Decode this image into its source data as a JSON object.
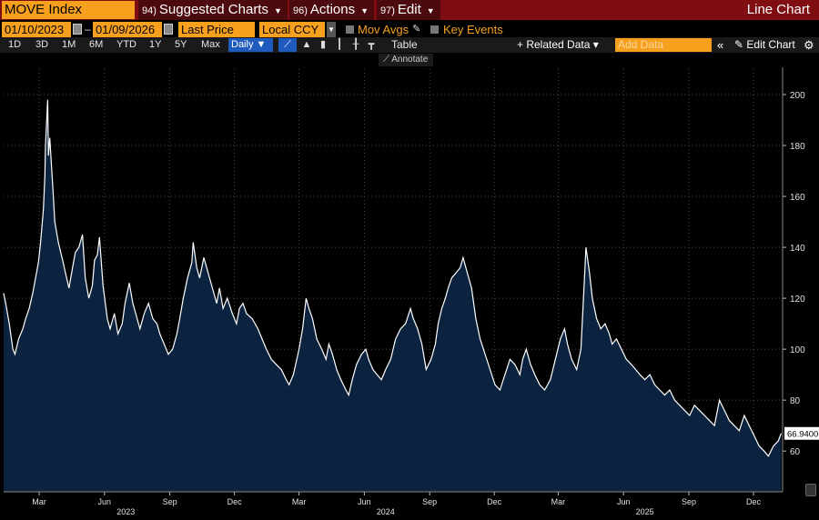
{
  "toolbar": {
    "ticker": "MOVE Index",
    "suggested_num": "94)",
    "suggested_label": "Suggested Charts",
    "actions_num": "96)",
    "actions_label": "Actions",
    "edit_num": "97)",
    "edit_label": "Edit",
    "chart_kind": "Line Chart"
  },
  "controls": {
    "start_date": "01/10/2023",
    "end_date": "01/09/2026",
    "field": "Last Price",
    "currency": "Local CCY",
    "mov_avgs": "Mov Avgs",
    "key_events": "Key Events"
  },
  "ranges": [
    "1D",
    "3D",
    "1M",
    "6M",
    "YTD",
    "1Y",
    "5Y",
    "Max"
  ],
  "frequency": "Daily ▼",
  "table_label": "Table",
  "related_data": "+ Related Data ▾",
  "add_data_placeholder": "Add Data",
  "edit_chart": "✎ Edit Chart",
  "annotate_label": "Annotate",
  "colors": {
    "top_bar": "#7f0d12",
    "orange": "#f6a01e",
    "area_fill": "#0c2340",
    "line": "#ffffff"
  },
  "chart_data": {
    "type": "area",
    "title": "MOVE Index",
    "ylim": [
      44,
      210
    ],
    "y_ticks": [
      60,
      80,
      100,
      120,
      140,
      160,
      180,
      200
    ],
    "x_range": [
      "2023-01-10",
      "2026-01-09"
    ],
    "month_ticks": [
      {
        "date": "2023-03-01",
        "label": "Mar"
      },
      {
        "date": "2023-06-01",
        "label": "Jun"
      },
      {
        "date": "2023-09-01",
        "label": "Sep"
      },
      {
        "date": "2023-12-01",
        "label": "Dec"
      },
      {
        "date": "2024-03-01",
        "label": "Mar"
      },
      {
        "date": "2024-06-01",
        "label": "Jun"
      },
      {
        "date": "2024-09-01",
        "label": "Sep"
      },
      {
        "date": "2024-12-01",
        "label": "Dec"
      },
      {
        "date": "2025-03-01",
        "label": "Mar"
      },
      {
        "date": "2025-06-01",
        "label": "Jun"
      },
      {
        "date": "2025-09-01",
        "label": "Sep"
      },
      {
        "date": "2025-12-01",
        "label": "Dec"
      }
    ],
    "year_labels": [
      {
        "date": "2023-07-01",
        "label": "2023"
      },
      {
        "date": "2024-07-01",
        "label": "2024"
      },
      {
        "date": "2025-07-01",
        "label": "2025"
      }
    ],
    "last_value": "66.9400",
    "series": [
      {
        "points": [
          [
            "2023-01-10",
            122
          ],
          [
            "2023-01-13",
            118
          ],
          [
            "2023-01-18",
            110
          ],
          [
            "2023-01-23",
            100
          ],
          [
            "2023-01-26",
            98
          ],
          [
            "2023-01-31",
            104
          ],
          [
            "2023-02-06",
            108
          ],
          [
            "2023-02-10",
            112
          ],
          [
            "2023-02-15",
            116
          ],
          [
            "2023-02-20",
            122
          ],
          [
            "2023-02-24",
            128
          ],
          [
            "2023-02-28",
            134
          ],
          [
            "2023-03-03",
            142
          ],
          [
            "2023-03-07",
            155
          ],
          [
            "2023-03-09",
            168
          ],
          [
            "2023-03-10",
            180
          ],
          [
            "2023-03-13",
            198
          ],
          [
            "2023-03-14",
            176
          ],
          [
            "2023-03-16",
            183
          ],
          [
            "2023-03-20",
            165
          ],
          [
            "2023-03-23",
            150
          ],
          [
            "2023-03-28",
            142
          ],
          [
            "2023-04-03",
            135
          ],
          [
            "2023-04-07",
            130
          ],
          [
            "2023-04-12",
            124
          ],
          [
            "2023-04-17",
            132
          ],
          [
            "2023-04-21",
            138
          ],
          [
            "2023-04-26",
            140
          ],
          [
            "2023-05-01",
            145
          ],
          [
            "2023-05-05",
            128
          ],
          [
            "2023-05-10",
            120
          ],
          [
            "2023-05-15",
            125
          ],
          [
            "2023-05-18",
            135
          ],
          [
            "2023-05-22",
            137
          ],
          [
            "2023-05-25",
            144
          ],
          [
            "2023-05-30",
            125
          ],
          [
            "2023-06-05",
            112
          ],
          [
            "2023-06-09",
            108
          ],
          [
            "2023-06-15",
            114
          ],
          [
            "2023-06-20",
            106
          ],
          [
            "2023-06-26",
            110
          ],
          [
            "2023-06-30",
            118
          ],
          [
            "2023-07-06",
            126
          ],
          [
            "2023-07-11",
            118
          ],
          [
            "2023-07-17",
            112
          ],
          [
            "2023-07-21",
            108
          ],
          [
            "2023-07-27",
            114
          ],
          [
            "2023-08-02",
            118
          ],
          [
            "2023-08-08",
            112
          ],
          [
            "2023-08-14",
            110
          ],
          [
            "2023-08-18",
            106
          ],
          [
            "2023-08-24",
            102
          ],
          [
            "2023-08-30",
            98
          ],
          [
            "2023-09-05",
            100
          ],
          [
            "2023-09-11",
            106
          ],
          [
            "2023-09-15",
            112
          ],
          [
            "2023-09-20",
            120
          ],
          [
            "2023-09-26",
            128
          ],
          [
            "2023-10-02",
            134
          ],
          [
            "2023-10-04",
            142
          ],
          [
            "2023-10-09",
            132
          ],
          [
            "2023-10-13",
            128
          ],
          [
            "2023-10-19",
            136
          ],
          [
            "2023-10-25",
            130
          ],
          [
            "2023-10-31",
            124
          ],
          [
            "2023-11-06",
            118
          ],
          [
            "2023-11-10",
            124
          ],
          [
            "2023-11-15",
            116
          ],
          [
            "2023-11-21",
            120
          ],
          [
            "2023-11-28",
            114
          ],
          [
            "2023-12-04",
            110
          ],
          [
            "2023-12-08",
            116
          ],
          [
            "2023-12-13",
            118
          ],
          [
            "2023-12-18",
            114
          ],
          [
            "2023-12-26",
            112
          ],
          [
            "2024-01-03",
            108
          ],
          [
            "2024-01-09",
            104
          ],
          [
            "2024-01-15",
            100
          ],
          [
            "2024-01-22",
            96
          ],
          [
            "2024-01-29",
            94
          ],
          [
            "2024-02-05",
            92
          ],
          [
            "2024-02-12",
            88
          ],
          [
            "2024-02-16",
            86
          ],
          [
            "2024-02-22",
            90
          ],
          [
            "2024-03-01",
            100
          ],
          [
            "2024-03-06",
            108
          ],
          [
            "2024-03-11",
            120
          ],
          [
            "2024-03-15",
            116
          ],
          [
            "2024-03-20",
            112
          ],
          [
            "2024-03-26",
            104
          ],
          [
            "2024-04-02",
            100
          ],
          [
            "2024-04-08",
            96
          ],
          [
            "2024-04-12",
            102
          ],
          [
            "2024-04-17",
            98
          ],
          [
            "2024-04-23",
            92
          ],
          [
            "2024-04-29",
            88
          ],
          [
            "2024-05-06",
            84
          ],
          [
            "2024-05-10",
            82
          ],
          [
            "2024-05-15",
            88
          ],
          [
            "2024-05-21",
            94
          ],
          [
            "2024-05-28",
            98
          ],
          [
            "2024-06-03",
            100
          ],
          [
            "2024-06-07",
            96
          ],
          [
            "2024-06-13",
            92
          ],
          [
            "2024-06-19",
            90
          ],
          [
            "2024-06-25",
            88
          ],
          [
            "2024-07-01",
            92
          ],
          [
            "2024-07-08",
            96
          ],
          [
            "2024-07-15",
            104
          ],
          [
            "2024-07-22",
            108
          ],
          [
            "2024-07-29",
            110
          ],
          [
            "2024-08-05",
            116
          ],
          [
            "2024-08-09",
            112
          ],
          [
            "2024-08-15",
            108
          ],
          [
            "2024-08-21",
            102
          ],
          [
            "2024-08-27",
            92
          ],
          [
            "2024-09-03",
            96
          ],
          [
            "2024-09-09",
            102
          ],
          [
            "2024-09-13",
            110
          ],
          [
            "2024-09-18",
            116
          ],
          [
            "2024-09-23",
            120
          ],
          [
            "2024-09-27",
            124
          ],
          [
            "2024-10-02",
            128
          ],
          [
            "2024-10-08",
            130
          ],
          [
            "2024-10-14",
            132
          ],
          [
            "2024-10-18",
            136
          ],
          [
            "2024-10-24",
            130
          ],
          [
            "2024-10-30",
            124
          ],
          [
            "2024-11-05",
            112
          ],
          [
            "2024-11-11",
            104
          ],
          [
            "2024-11-18",
            98
          ],
          [
            "2024-11-25",
            92
          ],
          [
            "2024-12-02",
            86
          ],
          [
            "2024-12-09",
            84
          ],
          [
            "2024-12-16",
            90
          ],
          [
            "2024-12-23",
            96
          ],
          [
            "2024-12-30",
            94
          ],
          [
            "2025-01-06",
            90
          ],
          [
            "2025-01-10",
            96
          ],
          [
            "2025-01-15",
            100
          ],
          [
            "2025-01-21",
            94
          ],
          [
            "2025-01-27",
            90
          ],
          [
            "2025-02-03",
            86
          ],
          [
            "2025-02-10",
            84
          ],
          [
            "2025-02-18",
            88
          ],
          [
            "2025-02-25",
            96
          ],
          [
            "2025-03-04",
            104
          ],
          [
            "2025-03-10",
            108
          ],
          [
            "2025-03-14",
            102
          ],
          [
            "2025-03-20",
            96
          ],
          [
            "2025-03-27",
            92
          ],
          [
            "2025-04-02",
            100
          ],
          [
            "2025-04-07",
            128
          ],
          [
            "2025-04-09",
            140
          ],
          [
            "2025-04-14",
            130
          ],
          [
            "2025-04-18",
            120
          ],
          [
            "2025-04-24",
            112
          ],
          [
            "2025-04-30",
            108
          ],
          [
            "2025-05-06",
            110
          ],
          [
            "2025-05-12",
            106
          ],
          [
            "2025-05-16",
            102
          ],
          [
            "2025-05-22",
            104
          ],
          [
            "2025-05-29",
            100
          ],
          [
            "2025-06-05",
            96
          ],
          [
            "2025-06-12",
            94
          ],
          [
            "2025-06-18",
            92
          ],
          [
            "2025-06-24",
            90
          ],
          [
            "2025-07-01",
            88
          ],
          [
            "2025-07-08",
            90
          ],
          [
            "2025-07-15",
            86
          ],
          [
            "2025-07-22",
            84
          ],
          [
            "2025-07-29",
            82
          ],
          [
            "2025-08-05",
            84
          ],
          [
            "2025-08-12",
            80
          ],
          [
            "2025-08-19",
            78
          ],
          [
            "2025-08-26",
            76
          ],
          [
            "2025-09-02",
            74
          ],
          [
            "2025-09-09",
            78
          ],
          [
            "2025-09-16",
            76
          ],
          [
            "2025-09-23",
            74
          ],
          [
            "2025-09-30",
            72
          ],
          [
            "2025-10-07",
            70
          ],
          [
            "2025-10-14",
            80
          ],
          [
            "2025-10-21",
            76
          ],
          [
            "2025-10-28",
            72
          ],
          [
            "2025-11-04",
            70
          ],
          [
            "2025-11-11",
            68
          ],
          [
            "2025-11-18",
            74
          ],
          [
            "2025-11-25",
            70
          ],
          [
            "2025-12-02",
            66
          ],
          [
            "2025-12-09",
            62
          ],
          [
            "2025-12-16",
            60
          ],
          [
            "2025-12-22",
            58
          ],
          [
            "2025-12-29",
            62
          ],
          [
            "2026-01-05",
            64
          ],
          [
            "2026-01-09",
            66.94
          ]
        ]
      }
    ]
  }
}
